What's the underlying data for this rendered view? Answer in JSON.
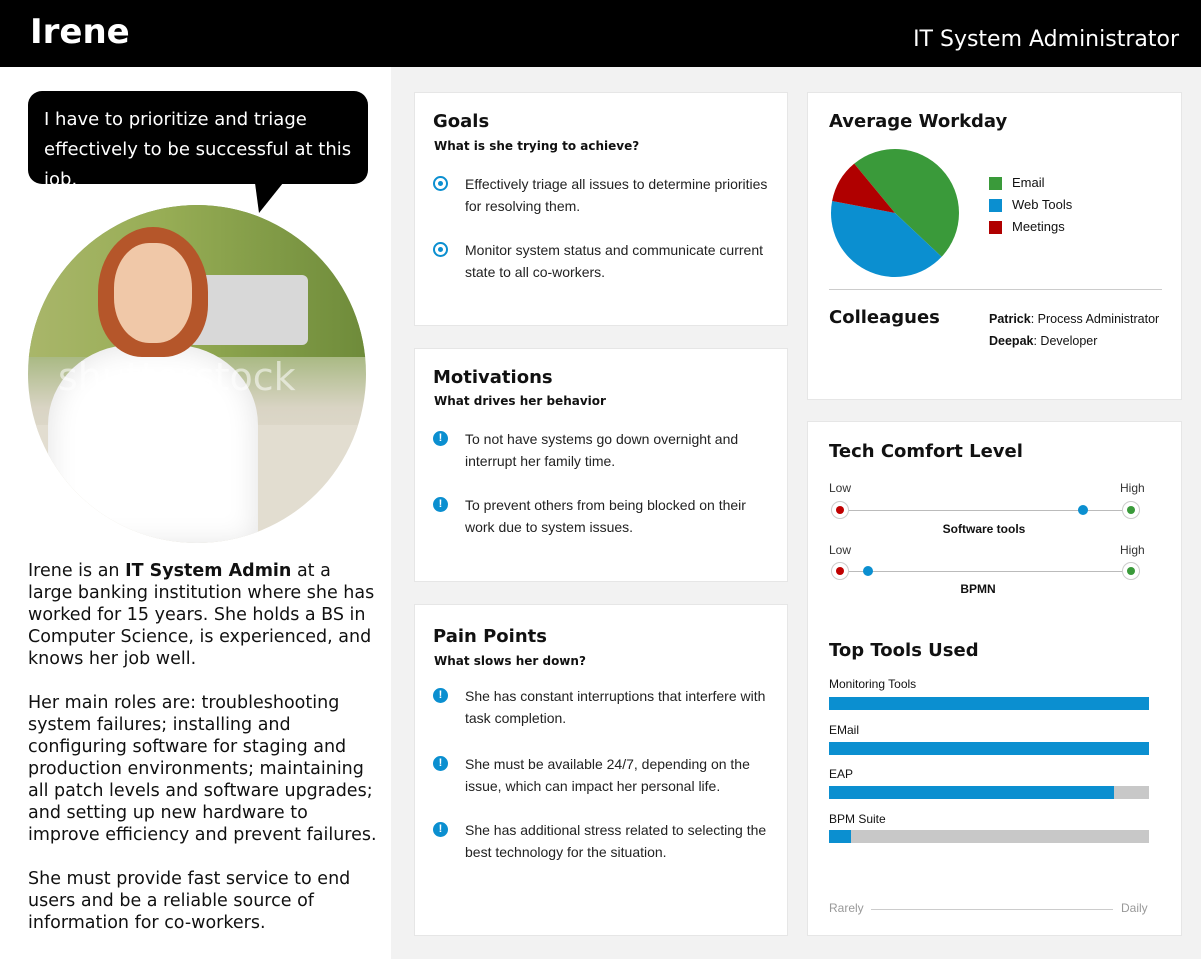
{
  "header": {
    "name": "Irene",
    "role": "IT System Administrator"
  },
  "quote": "I have to prioritize and triage effectively to be successful at this job.",
  "photo": {
    "watermark": "shutterstock"
  },
  "bio": {
    "p1_pre": "Irene is an ",
    "p1_bold": "IT System Admin",
    "p1_post": " at a large banking institution where she has worked for 15 years. She holds a BS in Computer Science, is experienced, and knows her job well.",
    "p2": "Her main roles are: troubleshooting system failures; installing and configuring software for staging and production environments; maintaining all patch levels and software upgrades; and setting up new hardware to improve efficiency and prevent failures.",
    "p3": "She must provide fast service to end users and be a reliable source of information for co-workers."
  },
  "goals": {
    "title": "Goals",
    "subtitle": "What is she trying to achieve?",
    "items": [
      {
        "icon": "target-icon",
        "text": "Effectively triage all issues to determine priorities for resolving them."
      },
      {
        "icon": "target-icon",
        "text": "Monitor system status and communicate current state to all co-workers."
      }
    ]
  },
  "motivations": {
    "title": "Motivations",
    "subtitle": "What drives her behavior",
    "items": [
      {
        "icon": "alert-icon",
        "text": "To not have systems go down overnight and interrupt her family time."
      },
      {
        "icon": "alert-icon",
        "text": "To prevent others from being blocked on their work due to system issues."
      }
    ]
  },
  "pain_points": {
    "title": "Pain Points",
    "subtitle": "What slows her down?",
    "items": [
      {
        "icon": "alert-icon",
        "text": "She has constant interruptions that interfere with task completion."
      },
      {
        "icon": "alert-icon",
        "text": "She must be available 24/7, depending on the issue, which can impact her personal life."
      },
      {
        "icon": "alert-icon",
        "text": "She has additional stress related to selecting the best technology for the situation."
      }
    ]
  },
  "workday": {
    "title": "Average Workday",
    "legend": [
      {
        "label": "Email",
        "color": "#3a9a3a"
      },
      {
        "label": "Web Tools",
        "color": "#0b8fd0"
      },
      {
        "label": "Meetings",
        "color": "#b00000"
      }
    ],
    "chart_data": {
      "type": "pie",
      "categories": [
        "Email",
        "Web Tools",
        "Meetings"
      ],
      "values": [
        48,
        41,
        11
      ],
      "colors": [
        "#3a9a3a",
        "#0b8fd0",
        "#b00000"
      ]
    }
  },
  "colleagues": {
    "title": "Colleagues",
    "items": [
      {
        "name": "Patrick",
        "role": ": Process Administrator"
      },
      {
        "name": "Deepak",
        "role": ": Developer"
      }
    ]
  },
  "tech_comfort": {
    "title": "Tech Comfort Level",
    "low_label": "Low",
    "high_label": "High",
    "sliders": [
      {
        "label": "Software tools",
        "level": 0.86
      },
      {
        "label": "BPMN",
        "level": 0.1
      }
    ]
  },
  "top_tools": {
    "title": "Top Tools Used",
    "axis_low": "Rarely",
    "axis_high": "Daily",
    "items": [
      {
        "label": "Monitoring Tools",
        "usage": 1.0
      },
      {
        "label": "EMail",
        "usage": 1.0
      },
      {
        "label": "EAP",
        "usage": 0.89
      },
      {
        "label": "BPM Suite",
        "usage": 0.07
      }
    ]
  },
  "colors": {
    "accent": "#0b8fd0",
    "header_bg": "#000000"
  }
}
